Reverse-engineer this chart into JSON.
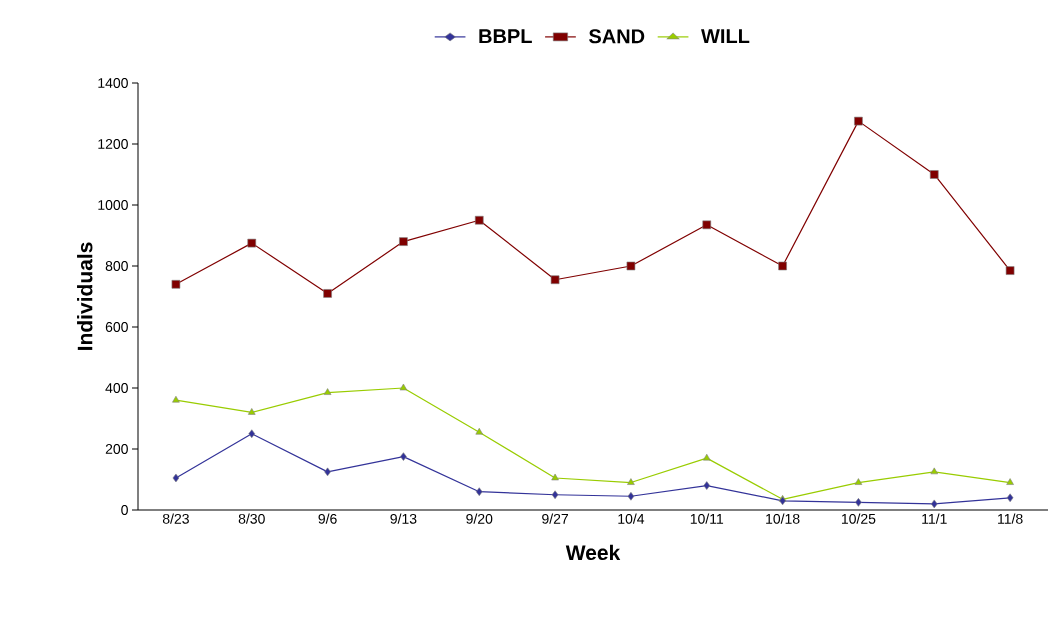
{
  "chart_data": {
    "type": "line",
    "xlabel": "Week",
    "ylabel": "Individuals",
    "categories": [
      "8/23",
      "8/30",
      "9/6",
      "9/13",
      "9/20",
      "9/27",
      "10/4",
      "10/11",
      "10/18",
      "10/25",
      "11/1",
      "11/8"
    ],
    "series": [
      {
        "name": "BBPL",
        "color": "#333399",
        "marker": "diamond",
        "values": [
          105,
          250,
          125,
          175,
          60,
          50,
          45,
          80,
          30,
          25,
          20,
          40
        ]
      },
      {
        "name": "SAND",
        "color": "#800000",
        "marker": "square",
        "values": [
          740,
          875,
          710,
          880,
          950,
          755,
          800,
          935,
          800,
          1275,
          1100,
          785
        ]
      },
      {
        "name": "WILL",
        "color": "#99cc00",
        "marker": "triangle",
        "values": [
          360,
          320,
          385,
          400,
          255,
          105,
          90,
          170,
          35,
          90,
          125,
          90
        ]
      }
    ],
    "ylim": [
      0,
      1400
    ],
    "yticks": [
      0,
      200,
      400,
      600,
      800,
      1000,
      1200,
      1400
    ],
    "grid": false,
    "legend": "top",
    "line_style": "solid"
  }
}
